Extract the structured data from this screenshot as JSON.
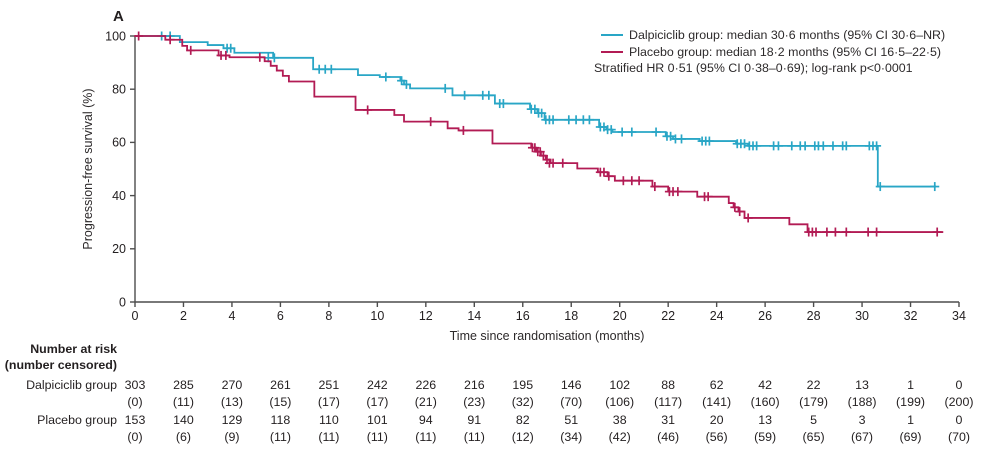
{
  "panel_label": "A",
  "legend": {
    "entries": [
      {
        "label": "Dalpiciclib group: median 30·6 months (95% CI 30·6–NR)",
        "color": "#29a6c6"
      },
      {
        "label": "Placebo group: median 18·2 months (95% CI 16·5–22·5)",
        "color": "#b21b54"
      }
    ],
    "annotation": "Stratified HR 0·51 (95% CI 0·38–0·69); log-rank p<0·0001"
  },
  "chart_data": {
    "type": "line",
    "subtype": "kaplan-meier-step",
    "title": "",
    "xlabel": "Time since randomisation (months)",
    "ylabel": "Progression-free survival (%)",
    "xlim": [
      0,
      34
    ],
    "ylim": [
      0,
      100
    ],
    "x_ticks": [
      0,
      2,
      4,
      6,
      8,
      10,
      12,
      14,
      16,
      18,
      20,
      22,
      24,
      26,
      28,
      30,
      32,
      34
    ],
    "y_ticks": [
      0,
      20,
      40,
      60,
      80,
      100
    ],
    "grid": false,
    "legend_position": "top-right",
    "series": [
      {
        "name": "Dalpiciclib group",
        "color": "#29a6c6",
        "end": 33.05,
        "steps": [
          [
            0,
            100
          ],
          [
            1.85,
            97.7
          ],
          [
            3.0,
            96.6
          ],
          [
            3.65,
            95.4
          ],
          [
            4.1,
            93.7
          ],
          [
            5.7,
            91.8
          ],
          [
            7.35,
            87.5
          ],
          [
            9.2,
            85.3
          ],
          [
            10.1,
            84.6
          ],
          [
            10.95,
            83.2
          ],
          [
            11.1,
            81.8
          ],
          [
            11.35,
            80.3
          ],
          [
            13.1,
            77.7
          ],
          [
            14.85,
            74.6
          ],
          [
            16.3,
            72.5
          ],
          [
            16.6,
            71.0
          ],
          [
            16.9,
            68.5
          ],
          [
            19.15,
            65.8
          ],
          [
            19.45,
            64.8
          ],
          [
            19.7,
            63.9
          ],
          [
            21.9,
            62.3
          ],
          [
            22.2,
            61.3
          ],
          [
            23.3,
            60.5
          ],
          [
            24.8,
            59.5
          ],
          [
            25.3,
            58.7
          ],
          [
            30.65,
            43.4
          ]
        ],
        "censors": [
          [
            1.1,
            100
          ],
          [
            1.45,
            100
          ],
          [
            3.8,
            95.4
          ],
          [
            3.95,
            95.4
          ],
          [
            5.5,
            91.8
          ],
          [
            5.75,
            91.8
          ],
          [
            7.6,
            87.5
          ],
          [
            7.85,
            87.5
          ],
          [
            8.1,
            87.5
          ],
          [
            10.35,
            84.6
          ],
          [
            11.0,
            83.2
          ],
          [
            11.2,
            81.8
          ],
          [
            12.8,
            80.3
          ],
          [
            13.6,
            77.7
          ],
          [
            14.35,
            77.7
          ],
          [
            14.6,
            77.7
          ],
          [
            15.05,
            74.6
          ],
          [
            15.2,
            74.6
          ],
          [
            16.35,
            72.5
          ],
          [
            16.5,
            72.5
          ],
          [
            16.65,
            71.0
          ],
          [
            16.78,
            71.0
          ],
          [
            16.95,
            68.5
          ],
          [
            17.1,
            68.5
          ],
          [
            17.25,
            68.5
          ],
          [
            17.9,
            68.5
          ],
          [
            18.2,
            68.5
          ],
          [
            18.5,
            68.5
          ],
          [
            18.75,
            68.5
          ],
          [
            19.2,
            65.8
          ],
          [
            19.35,
            65.8
          ],
          [
            19.5,
            64.8
          ],
          [
            19.65,
            64.8
          ],
          [
            20.1,
            63.9
          ],
          [
            20.5,
            63.9
          ],
          [
            21.5,
            63.9
          ],
          [
            21.95,
            62.3
          ],
          [
            22.1,
            62.3
          ],
          [
            22.3,
            61.3
          ],
          [
            22.55,
            61.3
          ],
          [
            23.4,
            60.5
          ],
          [
            23.55,
            60.5
          ],
          [
            23.7,
            60.5
          ],
          [
            24.85,
            59.5
          ],
          [
            25.0,
            59.5
          ],
          [
            25.15,
            59.5
          ],
          [
            25.35,
            58.7
          ],
          [
            25.5,
            58.7
          ],
          [
            25.65,
            58.7
          ],
          [
            26.35,
            58.7
          ],
          [
            26.55,
            58.7
          ],
          [
            27.1,
            58.7
          ],
          [
            27.45,
            58.7
          ],
          [
            27.65,
            58.7
          ],
          [
            28.05,
            58.7
          ],
          [
            28.2,
            58.7
          ],
          [
            28.4,
            58.7
          ],
          [
            28.8,
            58.7
          ],
          [
            29.2,
            58.7
          ],
          [
            29.35,
            58.7
          ],
          [
            30.3,
            58.7
          ],
          [
            30.45,
            58.7
          ],
          [
            30.6,
            58.7
          ],
          [
            30.75,
            43.4
          ],
          [
            33.0,
            43.4
          ]
        ]
      },
      {
        "name": "Placebo group",
        "color": "#b21b54",
        "end": 33.35,
        "steps": [
          [
            0,
            100
          ],
          [
            1.25,
            98.6
          ],
          [
            1.95,
            96.3
          ],
          [
            2.15,
            94.6
          ],
          [
            3.45,
            92.7
          ],
          [
            3.9,
            92.0
          ],
          [
            5.35,
            90.5
          ],
          [
            5.6,
            88.8
          ],
          [
            5.85,
            87.0
          ],
          [
            6.1,
            85.0
          ],
          [
            6.35,
            82.9
          ],
          [
            7.4,
            77.2
          ],
          [
            9.1,
            72.2
          ],
          [
            10.7,
            70.3
          ],
          [
            11.1,
            67.8
          ],
          [
            12.9,
            65.3
          ],
          [
            13.35,
            64.5
          ],
          [
            14.75,
            59.6
          ],
          [
            16.35,
            58.0
          ],
          [
            16.55,
            56.5
          ],
          [
            16.75,
            55.0
          ],
          [
            16.95,
            53.5
          ],
          [
            17.15,
            52.2
          ],
          [
            18.25,
            50.2
          ],
          [
            19.1,
            48.8
          ],
          [
            19.5,
            47.3
          ],
          [
            19.8,
            45.6
          ],
          [
            21.35,
            43.4
          ],
          [
            22.0,
            41.5
          ],
          [
            23.2,
            39.6
          ],
          [
            24.5,
            37.2
          ],
          [
            24.7,
            35.6
          ],
          [
            24.9,
            34.0
          ],
          [
            25.15,
            31.6
          ],
          [
            27.0,
            29.2
          ],
          [
            27.75,
            26.3
          ]
        ],
        "censors": [
          [
            0.15,
            100
          ],
          [
            1.45,
            98.6
          ],
          [
            2.3,
            94.6
          ],
          [
            3.55,
            92.7
          ],
          [
            3.75,
            92.7
          ],
          [
            5.15,
            92.0
          ],
          [
            9.6,
            72.2
          ],
          [
            12.2,
            67.8
          ],
          [
            13.55,
            64.5
          ],
          [
            16.4,
            58.0
          ],
          [
            16.5,
            58.0
          ],
          [
            16.62,
            56.5
          ],
          [
            16.72,
            56.5
          ],
          [
            16.85,
            55.0
          ],
          [
            17.0,
            53.5
          ],
          [
            17.1,
            52.2
          ],
          [
            17.25,
            52.2
          ],
          [
            17.65,
            52.2
          ],
          [
            19.2,
            48.8
          ],
          [
            19.35,
            48.8
          ],
          [
            19.55,
            47.3
          ],
          [
            20.15,
            45.6
          ],
          [
            20.5,
            45.6
          ],
          [
            20.8,
            45.6
          ],
          [
            21.45,
            43.4
          ],
          [
            22.05,
            41.5
          ],
          [
            22.2,
            41.5
          ],
          [
            22.4,
            41.5
          ],
          [
            23.5,
            39.6
          ],
          [
            23.65,
            39.6
          ],
          [
            24.75,
            35.6
          ],
          [
            24.95,
            34.0
          ],
          [
            25.3,
            31.6
          ],
          [
            27.8,
            26.3
          ],
          [
            27.95,
            26.3
          ],
          [
            28.1,
            26.3
          ],
          [
            28.55,
            26.3
          ],
          [
            28.9,
            26.3
          ],
          [
            29.35,
            26.3
          ],
          [
            30.25,
            26.3
          ],
          [
            30.6,
            26.3
          ],
          [
            33.1,
            26.3
          ]
        ]
      }
    ]
  },
  "risk_table": {
    "header_line1": "Number at risk",
    "header_line2": "(number censored)",
    "time_points": [
      0,
      2,
      4,
      6,
      8,
      10,
      12,
      14,
      16,
      18,
      20,
      22,
      24,
      26,
      28,
      30,
      32,
      34
    ],
    "rows": [
      {
        "group": "Dalpiciclib group",
        "at_risk": [
          303,
          285,
          270,
          261,
          251,
          242,
          226,
          216,
          195,
          146,
          102,
          88,
          62,
          42,
          22,
          13,
          1,
          0
        ],
        "censored": [
          0,
          11,
          13,
          15,
          17,
          17,
          21,
          23,
          32,
          70,
          106,
          117,
          141,
          160,
          179,
          188,
          199,
          200
        ]
      },
      {
        "group": "Placebo group",
        "at_risk": [
          153,
          140,
          129,
          118,
          110,
          101,
          94,
          91,
          82,
          51,
          38,
          31,
          20,
          13,
          5,
          3,
          1,
          0
        ],
        "censored": [
          0,
          6,
          9,
          11,
          11,
          11,
          11,
          11,
          12,
          34,
          42,
          46,
          56,
          59,
          65,
          67,
          69,
          70
        ]
      }
    ]
  }
}
